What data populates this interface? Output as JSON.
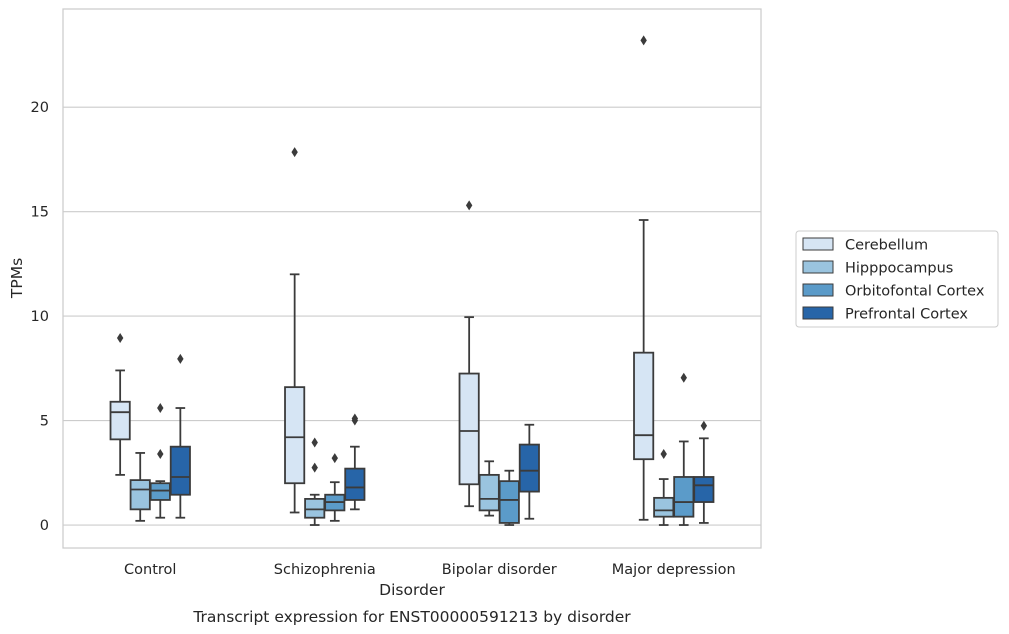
{
  "chart_data": {
    "type": "boxplot",
    "xlabel": "Disorder",
    "ylabel": "TPMs",
    "caption": "Transcript expression for ENST00000591213 by disorder",
    "ylim": [
      -1.1,
      24.7
    ],
    "yticks": [
      0,
      5,
      10,
      15,
      20
    ],
    "grid": "horizontal",
    "legend_position": "right",
    "categories": [
      "Control",
      "Schizophrenia",
      "Bipolar disorder",
      "Major depression"
    ],
    "series": [
      {
        "name": "Cerebellum",
        "color": "#d6e5f4",
        "boxes": [
          {
            "whisker_low": 2.4,
            "q1": 4.1,
            "median": 5.4,
            "q3": 5.9,
            "whisker_high": 7.4,
            "outliers": [
              8.95
            ]
          },
          {
            "whisker_low": 0.6,
            "q1": 2.0,
            "median": 4.2,
            "q3": 6.6,
            "whisker_high": 12.0,
            "outliers": [
              17.85
            ]
          },
          {
            "whisker_low": 0.9,
            "q1": 1.95,
            "median": 4.5,
            "q3": 7.25,
            "whisker_high": 9.95,
            "outliers": [
              15.3
            ]
          },
          {
            "whisker_low": 0.25,
            "q1": 3.15,
            "median": 4.3,
            "q3": 8.25,
            "whisker_high": 14.6,
            "outliers": [
              23.2
            ]
          }
        ]
      },
      {
        "name": "Hipppocampus",
        "color": "#9ac4df",
        "boxes": [
          {
            "whisker_low": 0.2,
            "q1": 0.75,
            "median": 1.7,
            "q3": 2.15,
            "whisker_high": 3.45,
            "outliers": []
          },
          {
            "whisker_low": 0.0,
            "q1": 0.35,
            "median": 0.75,
            "q3": 1.25,
            "whisker_high": 1.45,
            "outliers": [
              3.95,
              2.75
            ]
          },
          {
            "whisker_low": 0.45,
            "q1": 0.7,
            "median": 1.25,
            "q3": 2.4,
            "whisker_high": 3.05,
            "outliers": []
          },
          {
            "whisker_low": 0.0,
            "q1": 0.4,
            "median": 0.7,
            "q3": 1.3,
            "whisker_high": 2.2,
            "outliers": [
              3.4
            ]
          }
        ]
      },
      {
        "name": "Orbitofontal Cortex",
        "color": "#5b9bc9",
        "boxes": [
          {
            "whisker_low": 0.35,
            "q1": 1.2,
            "median": 1.65,
            "q3": 2.0,
            "whisker_high": 2.1,
            "outliers": [
              5.6,
              3.4
            ]
          },
          {
            "whisker_low": 0.2,
            "q1": 0.7,
            "median": 1.1,
            "q3": 1.45,
            "whisker_high": 2.05,
            "outliers": [
              3.2
            ]
          },
          {
            "whisker_low": 0.0,
            "q1": 0.1,
            "median": 1.2,
            "q3": 2.1,
            "whisker_high": 2.6,
            "outliers": []
          },
          {
            "whisker_low": 0.0,
            "q1": 0.4,
            "median": 1.1,
            "q3": 2.3,
            "whisker_high": 4.0,
            "outliers": [
              7.05
            ]
          }
        ]
      },
      {
        "name": "Prefrontal Cortex",
        "color": "#2765a8",
        "boxes": [
          {
            "whisker_low": 0.35,
            "q1": 1.45,
            "median": 2.3,
            "q3": 3.75,
            "whisker_high": 5.6,
            "outliers": [
              7.95
            ]
          },
          {
            "whisker_low": 0.75,
            "q1": 1.2,
            "median": 1.8,
            "q3": 2.7,
            "whisker_high": 3.75,
            "outliers": [
              5.1,
              5.0
            ]
          },
          {
            "whisker_low": 0.3,
            "q1": 1.6,
            "median": 2.6,
            "q3": 3.85,
            "whisker_high": 4.8,
            "outliers": []
          },
          {
            "whisker_low": 0.1,
            "q1": 1.1,
            "median": 1.9,
            "q3": 2.3,
            "whisker_high": 4.15,
            "outliers": [
              4.75
            ]
          }
        ]
      }
    ]
  }
}
